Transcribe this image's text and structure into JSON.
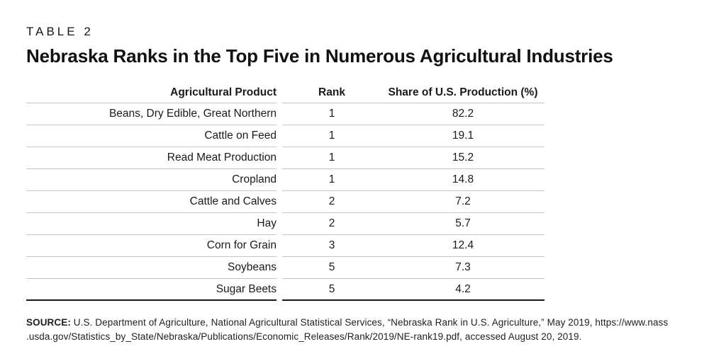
{
  "page": {
    "table_label": "TABLE 2",
    "title": "Nebraska Ranks in the Top Five in Numerous Agricultural Industries"
  },
  "table": {
    "columns": [
      "Agricultural Product",
      "Rank",
      "Share of U.S. Production (%)"
    ],
    "rows": [
      {
        "product": "Beans, Dry Edible, Great Northern",
        "rank": "1",
        "share": "82.2"
      },
      {
        "product": "Cattle on Feed",
        "rank": "1",
        "share": "19.1"
      },
      {
        "product": "Read Meat Production",
        "rank": "1",
        "share": "15.2"
      },
      {
        "product": "Cropland",
        "rank": "1",
        "share": "14.8"
      },
      {
        "product": "Cattle and Calves",
        "rank": "2",
        "share": "7.2"
      },
      {
        "product": "Hay",
        "rank": "2",
        "share": "5.7"
      },
      {
        "product": "Corn for Grain",
        "rank": "3",
        "share": "12.4"
      },
      {
        "product": "Soybeans",
        "rank": "5",
        "share": "7.3"
      },
      {
        "product": "Sugar Beets",
        "rank": "5",
        "share": "4.2"
      }
    ]
  },
  "source": {
    "label": "SOURCE:",
    "line1": " U.S. Department of Agriculture, National Agricultural Statistical Services, “Nebraska Rank in U.S. Agriculture,” May 2019, https://www.nass",
    "line2": ".usda.gov/Statistics_by_State/Nebraska/Publications/Economic_Releases/Rank/2019/NE-rank19.pdf, accessed August 20, 2019."
  },
  "colors": {
    "text": "#1a1a1a",
    "row_rule": "#c6c6c6",
    "bottom_rule": "#161616",
    "background": "#ffffff"
  }
}
